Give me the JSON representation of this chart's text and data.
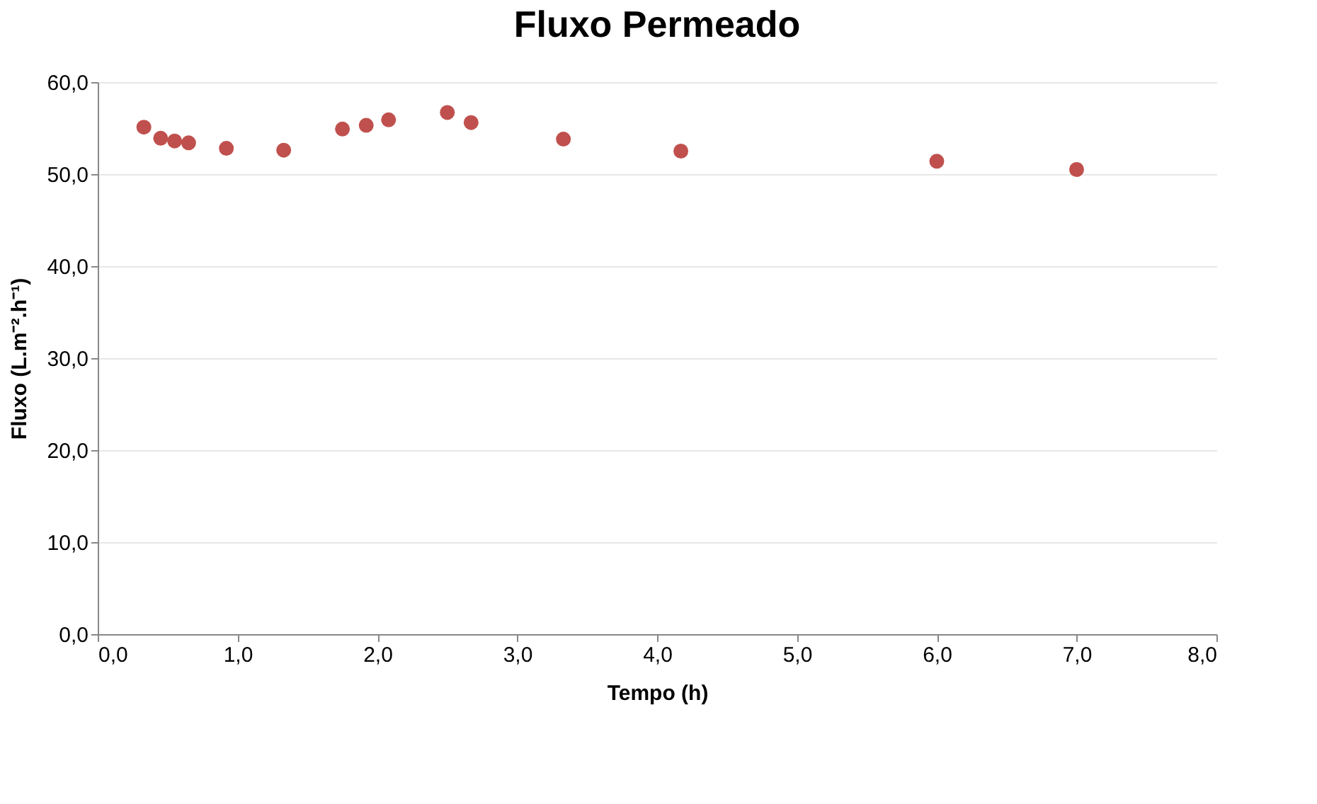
{
  "chart_data": {
    "type": "scatter",
    "title": "Fluxo Permeado",
    "xlabel": "Tempo (h)",
    "ylabel": "Fluxo (L.m⁻².h⁻¹)",
    "x": [
      0.33,
      0.45,
      0.55,
      0.65,
      0.92,
      1.33,
      1.75,
      1.92,
      2.08,
      2.5,
      2.67,
      3.33,
      4.17,
      6.0,
      7.0
    ],
    "series": [
      {
        "color": "#c0504d",
        "values": [
          55.1,
          53.9,
          53.6,
          53.4,
          52.8,
          52.6,
          54.9,
          55.3,
          55.9,
          56.7,
          55.6,
          53.8,
          52.5,
          51.4,
          50.5
        ]
      }
    ],
    "xlim": [
      0,
      8
    ],
    "xticks": [
      {
        "value": 0,
        "label": "0,0"
      },
      {
        "value": 1,
        "label": "1,0"
      },
      {
        "value": 2,
        "label": "2,0"
      },
      {
        "value": 3,
        "label": "3,0"
      },
      {
        "value": 4,
        "label": "4,0"
      },
      {
        "value": 5,
        "label": "5,0"
      },
      {
        "value": 6,
        "label": "6,0"
      },
      {
        "value": 7,
        "label": "7,0"
      },
      {
        "value": 8,
        "label": "8,0"
      }
    ],
    "ylim": [
      0,
      60
    ],
    "yticks": [
      {
        "value": 0,
        "label": "0,0"
      },
      {
        "value": 10,
        "label": "10,0"
      },
      {
        "value": 20,
        "label": "20,0"
      },
      {
        "value": 30,
        "label": "30,0"
      },
      {
        "value": 40,
        "label": "40,0"
      },
      {
        "value": 50,
        "label": "50,0"
      },
      {
        "value": 60,
        "label": "60,0"
      }
    ],
    "grid": "y",
    "marker": "circle",
    "legend": false
  }
}
